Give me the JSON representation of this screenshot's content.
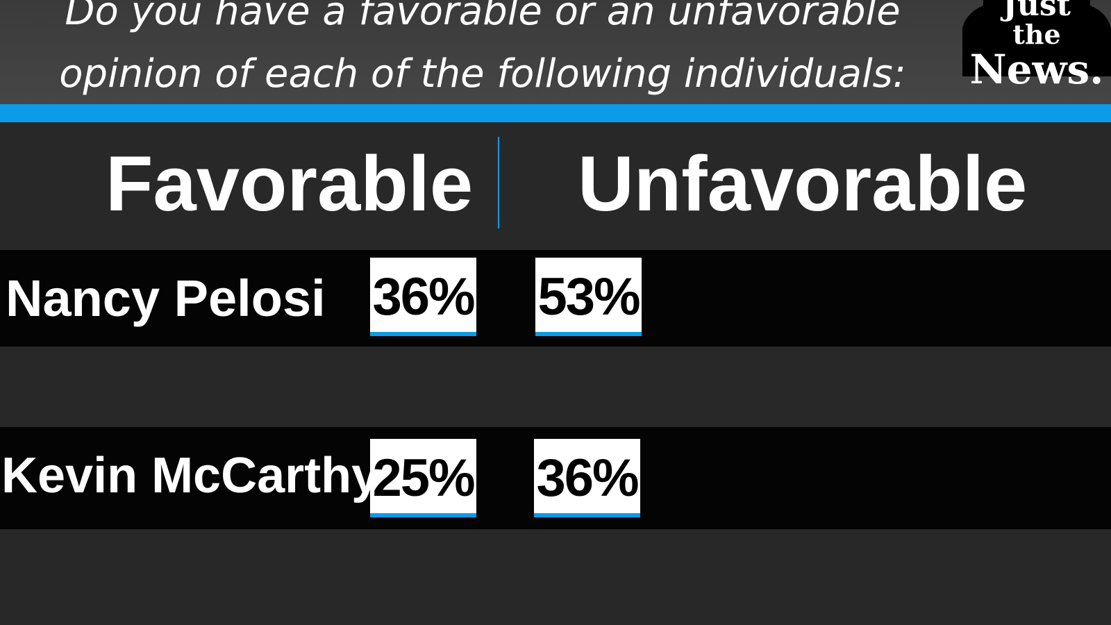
{
  "header": {
    "question": "Do you have a favorable or an unfavorable\nopinion of each of the following individuals:"
  },
  "logo": {
    "line1": "Just",
    "line2": "the",
    "line3": "News."
  },
  "columns": {
    "favorable": "Favorable",
    "unfavorable": "Unfavorable"
  },
  "rows": [
    {
      "name": "Nancy Pelosi",
      "favorable": "36%",
      "unfavorable": "53%"
    },
    {
      "name": "Kevin McCarthy",
      "favorable": "25%",
      "unfavorable": "36%"
    }
  ],
  "colors": {
    "accent": "#0c9be6",
    "background": "#282828",
    "row_background": "#040404",
    "text": "#ffffff"
  },
  "chart_data": {
    "type": "table",
    "title": "Do you have a favorable or an unfavorable opinion of each of the following individuals:",
    "columns": [
      "Favorable",
      "Unfavorable"
    ],
    "rows": [
      "Nancy Pelosi",
      "Kevin McCarthy"
    ],
    "values": [
      [
        36,
        53
      ],
      [
        25,
        36
      ]
    ],
    "unit": "%"
  }
}
